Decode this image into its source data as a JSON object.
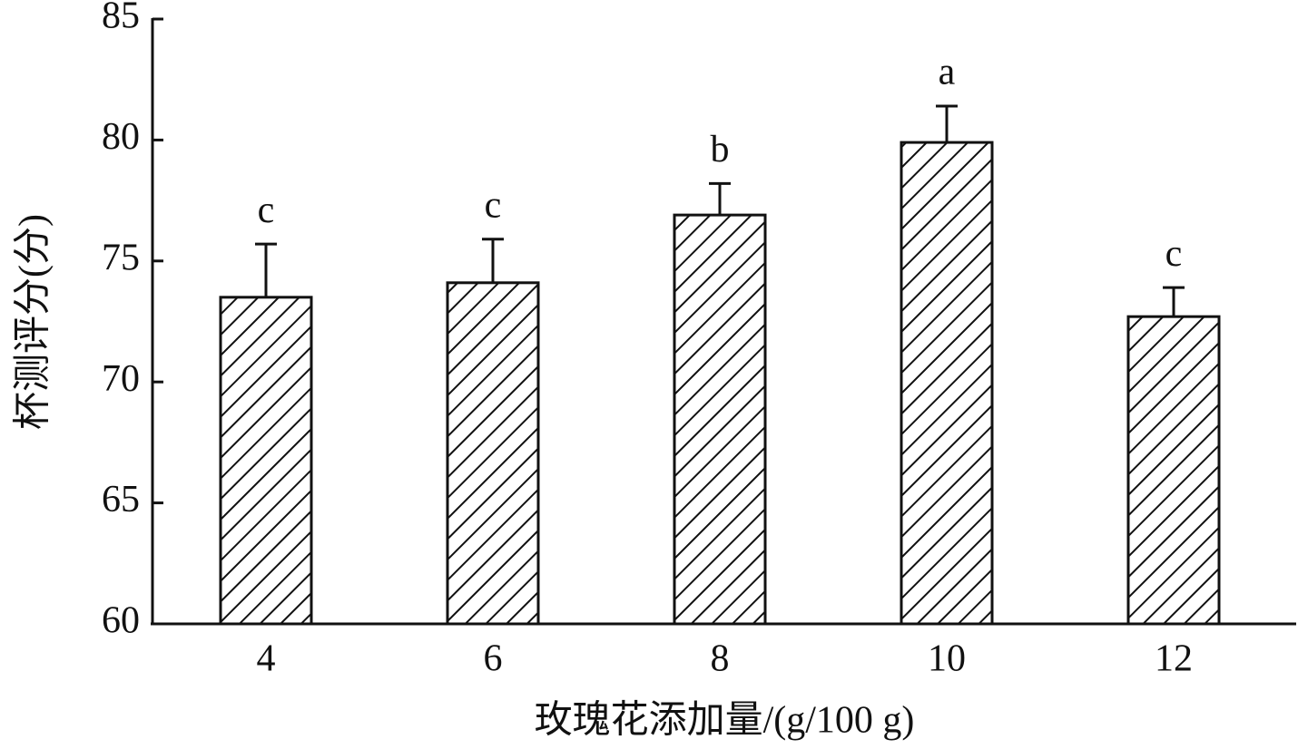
{
  "chart_data": {
    "type": "bar",
    "x_label": "玫瑰花添加量/(g/100 g)",
    "y_label": "杯测评分(分)",
    "categories": [
      "4",
      "6",
      "8",
      "10",
      "12"
    ],
    "values": [
      73.5,
      74.1,
      76.9,
      79.9,
      72.7
    ],
    "errors": [
      2.2,
      1.8,
      1.3,
      1.5,
      1.2
    ],
    "significance": [
      "c",
      "c",
      "b",
      "a",
      "c"
    ],
    "color": "#111111",
    "ylim": [
      60,
      85
    ],
    "yticks": [
      60,
      65,
      70,
      75,
      80,
      85
    ],
    "grid": false
  }
}
